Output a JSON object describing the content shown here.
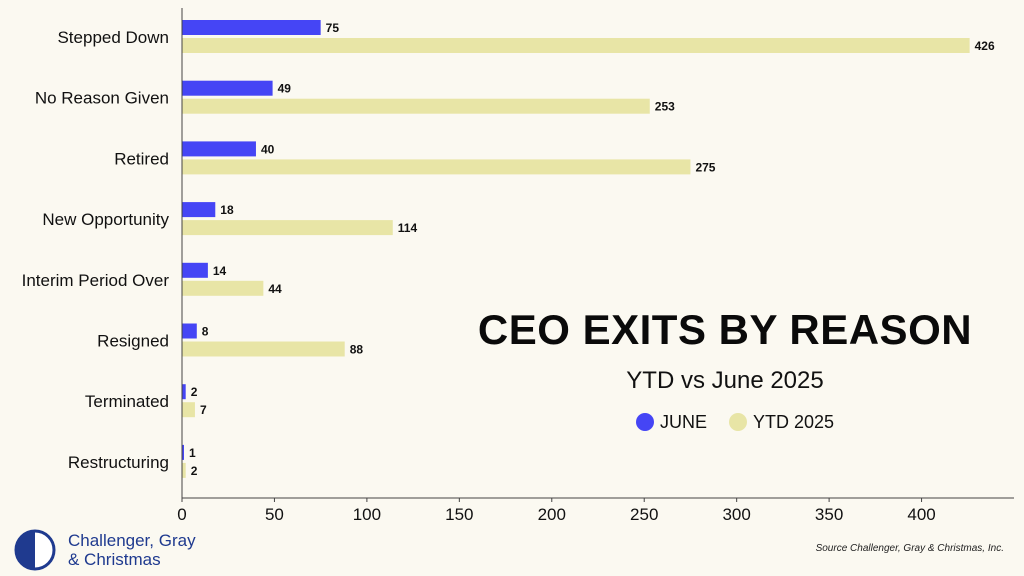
{
  "chart_data": {
    "type": "bar",
    "orientation": "horizontal",
    "title": "CEO EXITS BY REASON",
    "subtitle": "YTD vs June 2025",
    "categories": [
      "Stepped Down",
      "No Reason Given",
      "Retired",
      "New Opportunity",
      "Interim Period Over",
      "Resigned",
      "Terminated",
      "Restructuring"
    ],
    "series": [
      {
        "name": "JUNE",
        "color": "#4545f5",
        "values": [
          75,
          49,
          40,
          18,
          14,
          8,
          2,
          1
        ]
      },
      {
        "name": "YTD 2025",
        "color": "#e8e5a6",
        "values": [
          426,
          253,
          275,
          114,
          44,
          88,
          7,
          2
        ]
      }
    ],
    "xlim": [
      0,
      450
    ],
    "xticks": [
      0,
      50,
      100,
      150,
      200,
      250,
      300,
      350,
      400
    ],
    "xlabel": "",
    "ylabel": "",
    "grid": false,
    "legend_position": "right-middle"
  },
  "logo": {
    "line1": "Challenger, Gray",
    "line2": "& Christmas",
    "mark_color": "#1f3a8f"
  },
  "source": "Source Challenger, Gray & Christmas, Inc."
}
